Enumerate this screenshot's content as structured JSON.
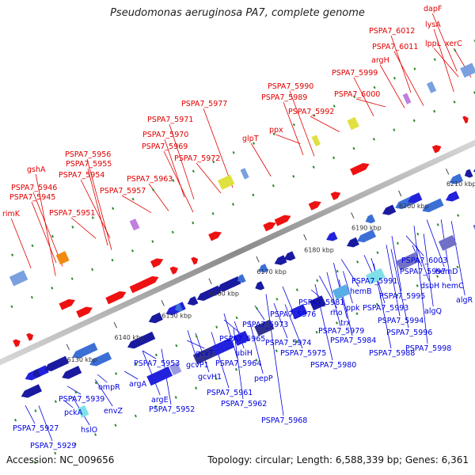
{
  "title": "Pseudomonas aeruginosa PA7, complete genome",
  "footer": {
    "accession": "Accession: NC_009656",
    "stats": "Topology: circular; Length: 6,588,339 bp; Genes: 6,361"
  },
  "colors": {
    "forward_label": "#e00000",
    "reverse_label": "#0000e0",
    "backbone": "#9a9a9a",
    "tick": "#2a8a2a"
  },
  "ticks": [
    "6130 kbp",
    "6140 kbp",
    "6150 kbp",
    "6160 kbp",
    "6170 kbp",
    "6180 kbp",
    "6190 kbp",
    "6200 kbp",
    "6210 kbp"
  ],
  "top_labels": [
    "rimK",
    "PSPA7_5945",
    "PSPA7_5946",
    "gshA",
    "PSPA7_5951",
    "PSPA7_5954",
    "PSPA7_5955",
    "PSPA7_5956",
    "PSPA7_5957",
    "PSPA7_5963",
    "PSPA7_5972",
    "PSPA7_5969",
    "PSPA7_5970",
    "PSPA7_5971",
    "PSPA7_5977",
    "glpT",
    "ppx",
    "PSPA7_5992",
    "PSPA7_5989",
    "PSPA7_5990",
    "PSPA7_6000",
    "PSPA7_5999",
    "argH",
    "PSPA7_6011",
    "PSPA7_6012",
    "lppL",
    "xerC",
    "lysA",
    "dapF"
  ],
  "bottom_labels": [
    "PSPA7_5927",
    "PSPA7_5929",
    "hslO",
    "pckA",
    "PSPA7_5939",
    "envZ",
    "ompR",
    "argA",
    "argE",
    "PSPA7_5952",
    "PSPA7_5953",
    "gcvT",
    "gcvP1",
    "gcvH1",
    "PSPA7_5961",
    "PSPA7_5962",
    "PSPA7_5964",
    "PSPA7_5965",
    "ubiH",
    "pepP",
    "PSPA7_5968",
    "PSPA7_5973",
    "PSPA7_5974",
    "PSPA7_5975",
    "PSPA7_5976",
    "PSPA7_5979",
    "PSPA7_5980",
    "PSPA7_5981",
    "trx",
    "rho",
    "ppk",
    "PSPA7_5984",
    "hemB",
    "PSPA7_5991",
    "PSPA7_5993",
    "PSPA7_5988",
    "PSPA7_5995",
    "PSPA7_5994",
    "PSPA7_5996",
    "PSPA7_5997",
    "PSPA7_5998",
    "PSPA7_6003",
    "algQ",
    "dsbH",
    "hemD",
    "hemC",
    "algR"
  ]
}
